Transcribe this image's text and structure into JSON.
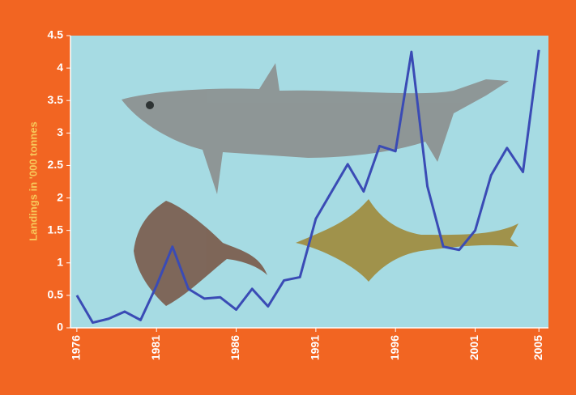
{
  "chart_data": {
    "type": "line",
    "y_label": "Landings in '000 tonnes",
    "x": [
      1976,
      1977,
      1978,
      1979,
      1980,
      1981,
      1982,
      1983,
      1984,
      1985,
      1986,
      1987,
      1988,
      1989,
      1990,
      1991,
      1992,
      1993,
      1994,
      1995,
      1996,
      1997,
      1998,
      1999,
      2000,
      2001,
      2002,
      2003,
      2004,
      2005
    ],
    "series": [
      {
        "color": "#3a4bb5",
        "values": [
          0.5,
          0.08,
          0.14,
          0.25,
          0.12,
          0.65,
          1.25,
          0.6,
          0.45,
          0.47,
          0.28,
          0.6,
          0.33,
          0.73,
          0.78,
          1.68,
          2.1,
          2.52,
          2.1,
          2.8,
          2.72,
          4.25,
          2.18,
          1.25,
          1.2,
          1.5,
          2.35,
          2.77,
          2.4,
          4.28
        ]
      }
    ],
    "xlim": [
      1975.6,
      2005.6
    ],
    "xticks": [
      1976,
      1981,
      1986,
      1991,
      1996,
      2001,
      2005
    ],
    "ylim": [
      0,
      4.5
    ],
    "yticks": [
      0,
      0.5,
      1,
      1.5,
      2,
      2.5,
      3,
      3.5,
      4,
      4.5
    ],
    "plot_color": "#a6dbe3"
  }
}
